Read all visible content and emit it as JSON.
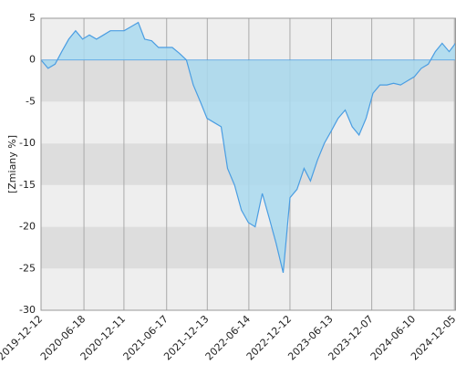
{
  "chart_data": {
    "type": "area",
    "y_label": "[Zmiany %]",
    "x": [
      "2019-12-12",
      "2020-01-12",
      "2020-02-12",
      "2020-03-12",
      "2020-04-12",
      "2020-05-12",
      "2020-06-12",
      "2020-07-12",
      "2020-08-12",
      "2020-09-12",
      "2020-10-12",
      "2020-11-12",
      "2020-12-12",
      "2021-01-12",
      "2021-02-12",
      "2021-03-12",
      "2021-04-12",
      "2021-05-12",
      "2021-06-12",
      "2021-07-12",
      "2021-08-12",
      "2021-09-12",
      "2021-10-12",
      "2021-11-12",
      "2021-12-12",
      "2022-01-12",
      "2022-02-12",
      "2022-03-12",
      "2022-04-12",
      "2022-05-12",
      "2022-06-12",
      "2022-07-12",
      "2022-08-12",
      "2022-09-12",
      "2022-10-12",
      "2022-11-12",
      "2022-12-12",
      "2023-01-12",
      "2023-02-12",
      "2023-03-12",
      "2023-04-12",
      "2023-05-12",
      "2023-06-12",
      "2023-07-12",
      "2023-08-12",
      "2023-09-12",
      "2023-10-12",
      "2023-11-12",
      "2023-12-12",
      "2024-01-12",
      "2024-02-12",
      "2024-03-12",
      "2024-04-12",
      "2024-05-12",
      "2024-06-12",
      "2024-07-12",
      "2024-08-12",
      "2024-09-12",
      "2024-10-12",
      "2024-11-12",
      "2024-12-10"
    ],
    "values": [
      0,
      -1,
      -0.5,
      1,
      2.5,
      3.5,
      2.5,
      3,
      2.5,
      3,
      3.5,
      3.5,
      3.5,
      4,
      4.5,
      2.5,
      2.3,
      1.5,
      1.5,
      1.5,
      0.8,
      0,
      -3,
      -5,
      -7,
      -7.5,
      -8,
      -13,
      -15,
      -18,
      -19.5,
      -20,
      -16,
      -19,
      -22,
      -25.5,
      -16.5,
      -15.5,
      -13,
      -14.5,
      -12,
      -10,
      -8.5,
      -7,
      -6,
      -8,
      -9,
      -7,
      -4,
      -3,
      -3,
      -2.8,
      -3,
      -2.5,
      -2,
      -1,
      -0.5,
      1,
      2,
      1,
      2
    ],
    "line_color": "#4a9de2",
    "fill_color": "#a9d9ee",
    "xlim": [
      "2019-12-12",
      "2024-12-12"
    ],
    "xticks": [
      "2019-12-12",
      "2020-06-18",
      "2020-12-11",
      "2021-06-17",
      "2021-12-13",
      "2022-06-14",
      "2022-12-12",
      "2023-06-13",
      "2023-12-07",
      "2024-06-10",
      "2024-12-05"
    ],
    "ylim": [
      -30,
      5
    ],
    "yticks": [
      -30,
      -25,
      -20,
      -15,
      -10,
      -5,
      0,
      5
    ],
    "grid": true
  }
}
